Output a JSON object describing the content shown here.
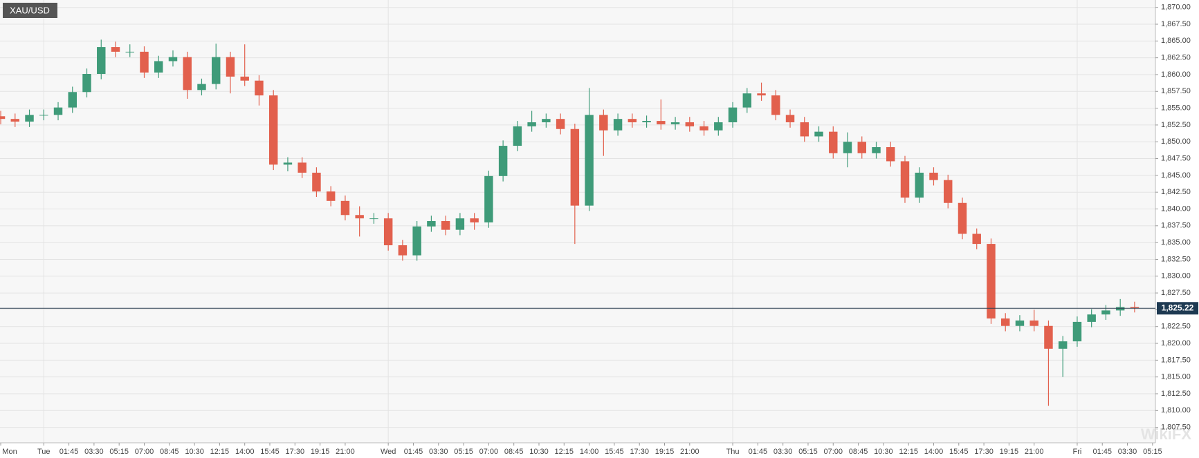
{
  "chart_data": {
    "type": "candlestick",
    "symbol": "XAU/USD",
    "watermark": "WikiFX",
    "up_color": "#3f9b79",
    "down_color": "#e2604d",
    "x": [
      -3,
      -2,
      -1,
      0,
      1,
      2,
      3,
      4,
      5,
      6,
      7,
      8,
      9,
      10,
      11,
      12,
      13,
      14,
      15,
      16,
      17,
      18,
      19,
      20,
      21,
      22,
      23,
      24,
      25,
      26,
      27,
      28,
      29,
      30,
      31,
      32,
      33,
      34,
      35,
      36,
      37,
      38,
      39,
      40,
      41,
      42,
      43,
      44,
      45,
      46,
      47,
      48,
      49,
      50,
      51,
      52,
      53,
      54,
      55,
      56,
      57,
      58,
      59,
      60,
      61,
      62,
      63,
      64,
      65,
      66,
      67,
      68,
      69,
      70,
      71,
      72,
      73,
      74,
      75,
      76
    ],
    "open": [
      1853.8,
      1853.4,
      1853.0,
      1854.0,
      1854.0,
      1855.1,
      1857.4,
      1860.1,
      1864.1,
      1863.4,
      1863.4,
      1860.3,
      1862.0,
      1862.6,
      1857.7,
      1858.6,
      1862.6,
      1859.7,
      1859.1,
      1856.9,
      1846.6,
      1846.9,
      1845.4,
      1842.6,
      1841.2,
      1839.1,
      1838.6,
      1838.6,
      1834.6,
      1833.1,
      1837.4,
      1838.2,
      1836.9,
      1838.6,
      1838.0,
      1844.9,
      1849.4,
      1852.3,
      1852.9,
      1853.4,
      1851.9,
      1840.5,
      1854.0,
      1851.7,
      1853.4,
      1852.9,
      1853.1,
      1852.6,
      1852.9,
      1852.3,
      1851.7,
      1852.9,
      1855.1,
      1857.2,
      1856.9,
      1854.0,
      1852.9,
      1850.8,
      1851.5,
      1848.3,
      1850.0,
      1848.3,
      1849.2,
      1847.1,
      1841.7,
      1845.4,
      1844.3,
      1840.9,
      1836.3,
      1834.8,
      1823.7,
      1822.6,
      1823.4,
      1822.6,
      1819.2,
      1820.3,
      1823.2,
      1824.3,
      1824.9,
      1825.4
    ],
    "high": [
      1854.6,
      1854.2,
      1854.8,
      1854.8,
      1855.9,
      1858.2,
      1860.9,
      1865.2,
      1864.9,
      1864.5,
      1864.2,
      1862.8,
      1863.6,
      1863.4,
      1859.4,
      1864.6,
      1863.4,
      1864.5,
      1859.9,
      1857.7,
      1847.7,
      1847.7,
      1846.2,
      1843.4,
      1842.0,
      1840.4,
      1839.4,
      1839.4,
      1835.4,
      1838.2,
      1839.0,
      1839.0,
      1839.4,
      1839.4,
      1845.7,
      1850.2,
      1853.1,
      1854.6,
      1854.2,
      1854.2,
      1852.7,
      1858.0,
      1854.8,
      1854.2,
      1854.2,
      1853.9,
      1856.3,
      1853.7,
      1853.7,
      1853.1,
      1853.7,
      1855.9,
      1858.0,
      1858.8,
      1857.7,
      1854.8,
      1853.7,
      1852.3,
      1852.3,
      1851.4,
      1850.8,
      1850.0,
      1850.0,
      1847.9,
      1846.2,
      1846.2,
      1845.1,
      1841.7,
      1837.1,
      1835.6,
      1824.5,
      1824.2,
      1825.0,
      1823.4,
      1821.1,
      1824.0,
      1825.1,
      1825.7,
      1826.6,
      1826.2
    ],
    "low": [
      1852.6,
      1852.2,
      1852.2,
      1853.2,
      1853.2,
      1854.3,
      1856.6,
      1859.3,
      1862.6,
      1862.6,
      1859.5,
      1859.5,
      1861.2,
      1856.4,
      1856.9,
      1857.8,
      1857.2,
      1858.3,
      1855.4,
      1845.8,
      1845.6,
      1844.6,
      1841.8,
      1840.4,
      1838.3,
      1835.9,
      1837.8,
      1833.8,
      1832.3,
      1832.3,
      1836.6,
      1836.1,
      1836.1,
      1836.9,
      1837.2,
      1844.1,
      1848.6,
      1851.5,
      1852.1,
      1851.1,
      1834.8,
      1839.7,
      1847.9,
      1850.9,
      1852.1,
      1852.1,
      1851.8,
      1851.8,
      1851.5,
      1850.9,
      1850.9,
      1852.1,
      1854.3,
      1856.1,
      1853.2,
      1852.1,
      1850.0,
      1850.0,
      1847.5,
      1846.2,
      1847.5,
      1847.5,
      1846.3,
      1840.9,
      1840.9,
      1843.5,
      1840.1,
      1835.5,
      1834.0,
      1822.9,
      1821.8,
      1821.8,
      1821.8,
      1810.7,
      1815.0,
      1819.5,
      1822.4,
      1823.5,
      1824.1,
      1824.6
    ],
    "close": [
      1853.4,
      1853.0,
      1854.0,
      1854.0,
      1855.1,
      1857.4,
      1860.1,
      1864.1,
      1863.4,
      1863.4,
      1860.3,
      1862.0,
      1862.6,
      1857.7,
      1858.6,
      1862.6,
      1859.7,
      1859.1,
      1856.9,
      1846.6,
      1846.9,
      1845.4,
      1842.6,
      1841.2,
      1839.1,
      1838.6,
      1838.6,
      1834.6,
      1833.1,
      1837.4,
      1838.2,
      1836.9,
      1838.6,
      1838.0,
      1844.9,
      1849.4,
      1852.3,
      1852.9,
      1853.4,
      1851.9,
      1840.5,
      1854.0,
      1851.7,
      1853.4,
      1852.9,
      1853.1,
      1852.6,
      1852.9,
      1852.3,
      1851.7,
      1852.9,
      1855.1,
      1857.2,
      1856.9,
      1854.0,
      1852.9,
      1850.8,
      1851.5,
      1848.3,
      1850.0,
      1848.3,
      1849.2,
      1847.1,
      1841.7,
      1845.4,
      1844.3,
      1840.9,
      1836.3,
      1834.8,
      1823.7,
      1822.6,
      1823.4,
      1822.6,
      1819.2,
      1820.3,
      1823.2,
      1824.3,
      1824.9,
      1825.4,
      1825.22
    ],
    "last_price": {
      "value": 1825.22,
      "label": "1,825.22"
    },
    "xlim": [
      -3.05,
      77.45
    ],
    "xticks": [
      {
        "value": -3,
        "label": "Mon"
      },
      {
        "value": 0,
        "label": "Tue"
      },
      {
        "value": 1.75,
        "label": "01:45"
      },
      {
        "value": 3.5,
        "label": "03:30"
      },
      {
        "value": 5.25,
        "label": "05:15"
      },
      {
        "value": 7,
        "label": "07:00"
      },
      {
        "value": 8.75,
        "label": "08:45"
      },
      {
        "value": 10.5,
        "label": "10:30"
      },
      {
        "value": 12.25,
        "label": "12:15"
      },
      {
        "value": 14,
        "label": "14:00"
      },
      {
        "value": 15.75,
        "label": "15:45"
      },
      {
        "value": 17.5,
        "label": "17:30"
      },
      {
        "value": 19.25,
        "label": "19:15"
      },
      {
        "value": 21,
        "label": "21:00"
      },
      {
        "value": 24,
        "label": "Wed"
      },
      {
        "value": 25.75,
        "label": "01:45"
      },
      {
        "value": 27.5,
        "label": "03:30"
      },
      {
        "value": 29.25,
        "label": "05:15"
      },
      {
        "value": 31,
        "label": "07:00"
      },
      {
        "value": 32.75,
        "label": "08:45"
      },
      {
        "value": 34.5,
        "label": "10:30"
      },
      {
        "value": 36.25,
        "label": "12:15"
      },
      {
        "value": 38,
        "label": "14:00"
      },
      {
        "value": 39.75,
        "label": "15:45"
      },
      {
        "value": 41.5,
        "label": "17:30"
      },
      {
        "value": 43.25,
        "label": "19:15"
      },
      {
        "value": 45,
        "label": "21:00"
      },
      {
        "value": 48,
        "label": "Thu"
      },
      {
        "value": 49.75,
        "label": "01:45"
      },
      {
        "value": 51.5,
        "label": "03:30"
      },
      {
        "value": 53.25,
        "label": "05:15"
      },
      {
        "value": 55,
        "label": "07:00"
      },
      {
        "value": 56.75,
        "label": "08:45"
      },
      {
        "value": 58.5,
        "label": "10:30"
      },
      {
        "value": 60.25,
        "label": "12:15"
      },
      {
        "value": 62,
        "label": "14:00"
      },
      {
        "value": 63.75,
        "label": "15:45"
      },
      {
        "value": 65.5,
        "label": "17:30"
      },
      {
        "value": 67.25,
        "label": "19:15"
      },
      {
        "value": 69,
        "label": "21:00"
      },
      {
        "value": 72,
        "label": "Fri"
      },
      {
        "value": 73.75,
        "label": "01:45"
      },
      {
        "value": 75.5,
        "label": "03:30"
      },
      {
        "value": 77.25,
        "label": "05:15"
      }
    ],
    "ylim": [
      1805.2,
      1871.1
    ],
    "yticks": [
      {
        "value": 1807.5,
        "label": "1,807.50"
      },
      {
        "value": 1810,
        "label": "1,810.00"
      },
      {
        "value": 1812.5,
        "label": "1,812.50"
      },
      {
        "value": 1815,
        "label": "1,815.00"
      },
      {
        "value": 1817.5,
        "label": "1,817.50"
      },
      {
        "value": 1820,
        "label": "1,820.00"
      },
      {
        "value": 1822.5,
        "label": "1,822.50"
      },
      {
        "value": 1825,
        "label": "1,825.00"
      },
      {
        "value": 1827.5,
        "label": "1,827.50"
      },
      {
        "value": 1830,
        "label": "1,830.00"
      },
      {
        "value": 1832.5,
        "label": "1,832.50"
      },
      {
        "value": 1835,
        "label": "1,835.00"
      },
      {
        "value": 1837.5,
        "label": "1,837.50"
      },
      {
        "value": 1840,
        "label": "1,840.00"
      },
      {
        "value": 1842.5,
        "label": "1,842.50"
      },
      {
        "value": 1845,
        "label": "1,845.00"
      },
      {
        "value": 1847.5,
        "label": "1,847.50"
      },
      {
        "value": 1850,
        "label": "1,850.00"
      },
      {
        "value": 1852.5,
        "label": "1,852.50"
      },
      {
        "value": 1855,
        "label": "1,855.00"
      },
      {
        "value": 1857.5,
        "label": "1,857.50"
      },
      {
        "value": 1860,
        "label": "1,860.00"
      },
      {
        "value": 1862.5,
        "label": "1,862.50"
      },
      {
        "value": 1865,
        "label": "1,865.00"
      },
      {
        "value": 1867.5,
        "label": "1,867.50"
      },
      {
        "value": 1870,
        "label": "1,870.00"
      }
    ],
    "grid": true
  }
}
